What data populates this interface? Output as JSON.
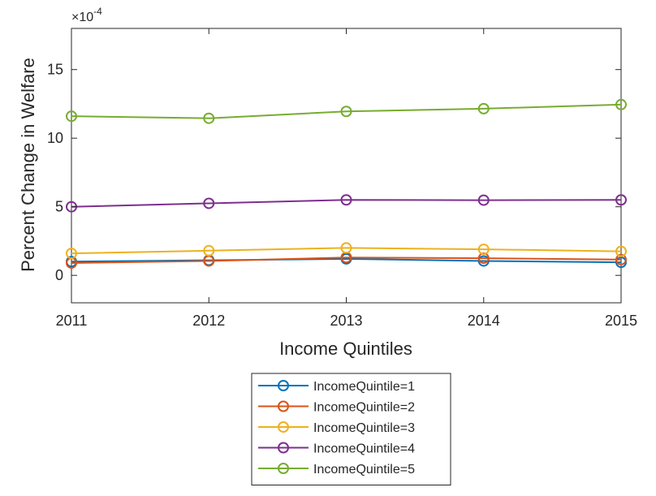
{
  "chart_data": {
    "type": "line",
    "title": "",
    "xlabel": "Income Quintiles",
    "ylabel": "Percent Change in Welfare",
    "exponent_label": "×10",
    "exponent_power": "-4",
    "x": [
      2011,
      2012,
      2013,
      2014,
      2015
    ],
    "x_tick_labels": [
      "2011",
      "2012",
      "2013",
      "2014",
      "2015"
    ],
    "xlim": [
      2011,
      2015
    ],
    "y_ticks": [
      0,
      5,
      10,
      15
    ],
    "y_tick_labels": [
      "0",
      "5",
      "10",
      "15"
    ],
    "ylim": [
      -2,
      18
    ],
    "grid": false,
    "legend_position": "bottom-outside",
    "series": [
      {
        "name": "IncomeQuintile=1",
        "color": "#0072BD",
        "values": [
          1.0,
          1.1,
          1.2,
          1.05,
          0.95
        ]
      },
      {
        "name": "IncomeQuintile=2",
        "color": "#D95319",
        "values": [
          0.9,
          1.05,
          1.3,
          1.25,
          1.15
        ]
      },
      {
        "name": "IncomeQuintile=3",
        "color": "#EDB120",
        "values": [
          1.6,
          1.8,
          2.0,
          1.9,
          1.75
        ]
      },
      {
        "name": "IncomeQuintile=4",
        "color": "#7E2F8E",
        "values": [
          5.0,
          5.25,
          5.5,
          5.48,
          5.5
        ]
      },
      {
        "name": "IncomeQuintile=5",
        "color": "#77AC30",
        "values": [
          11.6,
          11.45,
          11.95,
          12.15,
          12.45
        ]
      }
    ]
  }
}
